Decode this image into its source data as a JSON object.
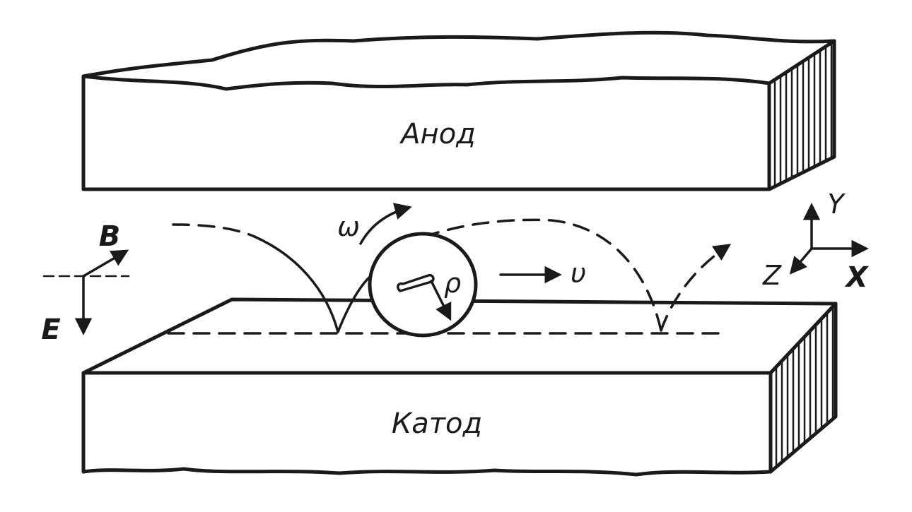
{
  "labels": {
    "anode": "Анод",
    "cathode": "Катод",
    "b_field": "B",
    "e_field": "E",
    "omega": "ω",
    "velocity": "υ",
    "rho": "ρ",
    "axis_x": "X",
    "axis_y": "Y",
    "axis_z": "Z"
  }
}
